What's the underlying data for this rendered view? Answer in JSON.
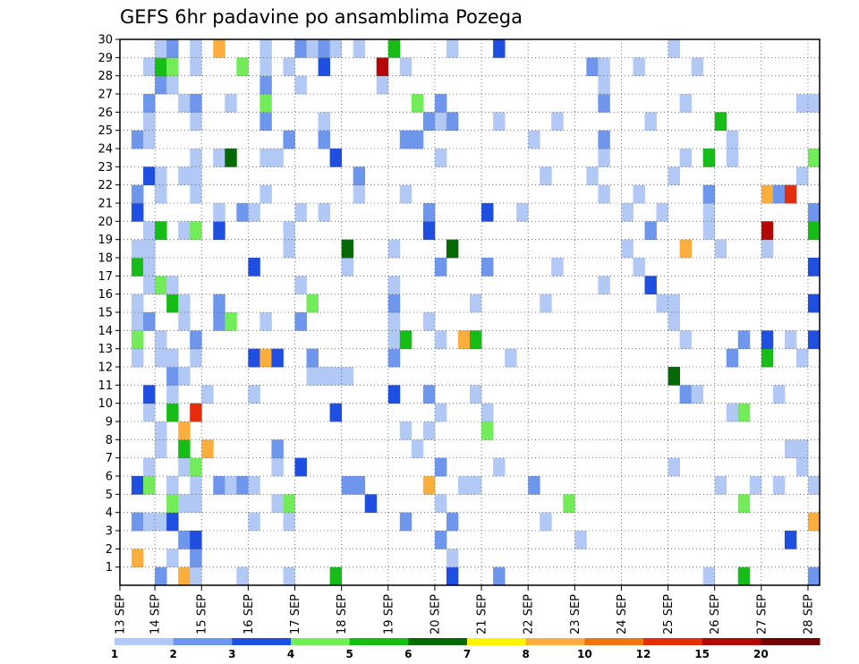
{
  "chart_data": {
    "type": "heatmap",
    "title": "GEFS 6hr padavine po ansamblima Pozega",
    "xlabel": "",
    "ylabel": "",
    "x_tick_labels": [
      "13 SEP",
      "14 SEP",
      "15 SEP",
      "16 SEP",
      "17 SEP",
      "18 SEP",
      "19 SEP",
      "20 SEP",
      "21 SEP",
      "22 SEP",
      "23 SEP",
      "24 SEP",
      "25 SEP",
      "26 SEP",
      "27 SEP",
      "28 SEP"
    ],
    "y_tick_labels": [
      "1",
      "2",
      "3",
      "4",
      "5",
      "6",
      "7",
      "8",
      "9",
      "10",
      "11",
      "12",
      "13",
      "14",
      "15",
      "16",
      "17",
      "18",
      "19",
      "20",
      "21",
      "22",
      "23",
      "24",
      "25",
      "26",
      "27",
      "28",
      "29",
      "30"
    ],
    "time_steps_per_day": 4,
    "xlim": [
      0,
      60
    ],
    "ylim": [
      0,
      30
    ],
    "grid": true,
    "legend": {
      "position": "bottom",
      "labels": [
        "1",
        "2",
        "3",
        "4",
        "5",
        "6",
        "7",
        "8",
        "10",
        "12",
        "15",
        "20"
      ],
      "bins": [
        {
          "color": "#b2c8f5"
        },
        {
          "color": "#6e96ec"
        },
        {
          "color": "#1e4fe0"
        },
        {
          "color": "#73ec5a"
        },
        {
          "color": "#16bd16"
        },
        {
          "color": "#056a05"
        },
        {
          "color": "#fcf400"
        },
        {
          "color": "#fcae3c"
        },
        {
          "color": "#f4740c"
        },
        {
          "color": "#e52c0c"
        },
        {
          "color": "#b40808"
        },
        {
          "color": "#6e0404"
        }
      ]
    },
    "cell_bins": {
      "1": [
        [
          0,
          16
        ],
        [
          1,
          15
        ],
        [
          2,
          16
        ],
        [
          3,
          14
        ],
        [
          4,
          18
        ],
        [
          5,
          20
        ],
        [
          6,
          21
        ],
        [
          6,
          22
        ],
        [
          7,
          22
        ],
        [
          8,
          22
        ],
        [
          9,
          19
        ],
        [
          11,
          24
        ],
        [
          12,
          20
        ],
        [
          13,
          21
        ],
        [
          14,
          21
        ],
        [
          15,
          23
        ],
        [
          16,
          21
        ],
        [
          20,
          22
        ],
        [
          22,
          22
        ],
        [
          23,
          23
        ],
        [
          25,
          19
        ],
        [
          26,
          24
        ],
        [
          27,
          17
        ],
        [
          28,
          17
        ],
        [
          29,
          18
        ],
        [
          30,
          18
        ],
        [
          31,
          19
        ],
        [
          32,
          18
        ],
        [
          33,
          18
        ],
        [
          35,
          22
        ],
        [
          36,
          24
        ],
        [
          37,
          24
        ],
        [
          38,
          26
        ],
        [
          40,
          18
        ],
        [
          41,
          20
        ],
        [
          42,
          20
        ],
        [
          43,
          22
        ],
        [
          44,
          20
        ],
        [
          46,
          13
        ],
        [
          46,
          14
        ],
        [
          47,
          14
        ],
        [
          47,
          19
        ],
        [
          49,
          18
        ],
        [
          50,
          13
        ],
        [
          50,
          17
        ],
        [
          50,
          18
        ],
        [
          51,
          20
        ],
        [
          52,
          17
        ],
        [
          53,
          19
        ],
        [
          54,
          17
        ],
        [
          55,
          19
        ],
        [
          56,
          21
        ],
        [
          57,
          25
        ],
        [
          58,
          23
        ],
        [
          59,
          24
        ],
        [
          60,
          26
        ]
      ]
    },
    "bins_sample": {
      "2": [
        [
          3,
          13
        ],
        [
          4,
          14
        ],
        [
          5,
          13
        ],
        [
          6,
          16
        ],
        [
          7,
          13
        ],
        [
          8,
          17
        ],
        [
          9,
          17
        ],
        [
          10,
          15
        ],
        [
          11,
          16
        ],
        [
          12,
          16
        ],
        [
          14,
          17
        ],
        [
          15,
          17
        ],
        [
          17,
          16
        ],
        [
          18,
          20
        ],
        [
          20,
          21
        ],
        [
          21,
          21
        ],
        [
          22,
          20
        ],
        [
          23,
          21
        ],
        [
          24,
          16
        ],
        [
          25,
          16
        ],
        [
          26,
          17
        ],
        [
          27,
          17
        ],
        [
          28,
          17
        ],
        [
          29,
          23
        ],
        [
          30,
          17
        ],
        [
          31,
          18
        ],
        [
          32,
          16
        ],
        [
          33,
          16
        ],
        [
          34,
          19
        ],
        [
          35,
          19
        ],
        [
          36,
          17
        ],
        [
          37,
          16
        ],
        [
          38,
          18
        ],
        [
          39,
          17
        ],
        [
          40,
          19
        ],
        [
          41,
          16
        ],
        [
          42,
          16
        ],
        [
          43,
          17
        ],
        [
          44,
          15
        ],
        [
          45,
          15
        ],
        [
          46,
          16
        ],
        [
          47,
          17
        ],
        [
          48,
          16
        ],
        [
          49,
          15
        ],
        [
          50,
          15
        ],
        [
          51,
          21
        ],
        [
          52,
          16
        ],
        [
          53,
          16
        ],
        [
          54,
          17
        ],
        [
          55,
          16
        ],
        [
          56,
          16
        ],
        [
          57,
          19
        ],
        [
          58,
          20
        ],
        [
          59,
          18
        ],
        [
          60,
          20
        ]
      ]
    },
    "ensemble_members": 30,
    "time_steps": 60
  }
}
